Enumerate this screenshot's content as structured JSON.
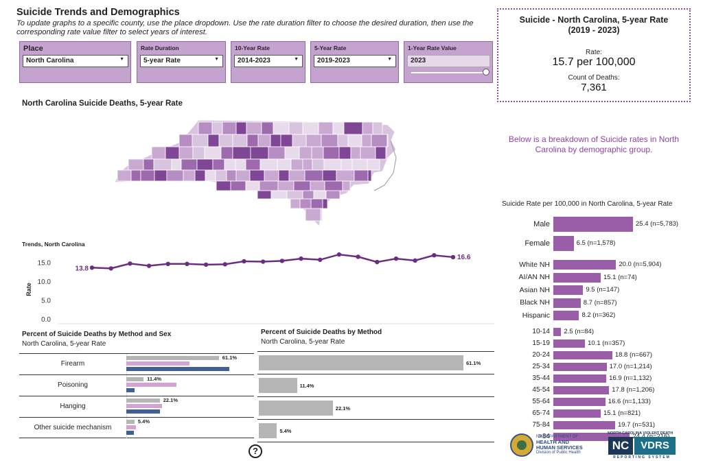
{
  "header": {
    "title": "Suicide Trends and Demographics",
    "subtitle": "To update graphs to a specific county, use the place dropdown.  Use the rate duration filter to choose the desired duration, then use the corresponding rate value filter to select years of interest."
  },
  "filters": {
    "place": {
      "label": "Place",
      "value": "North Carolina"
    },
    "duration": {
      "label": "Rate Duration",
      "value": "5-year Rate"
    },
    "ten_year": {
      "label": "10-Year Rate",
      "value": "2014-2023"
    },
    "five_year": {
      "label": "5-Year Rate",
      "value": "2019-2023"
    },
    "one_year": {
      "label": "1-Year Rate Value",
      "value": "2023",
      "slider_fraction": 1.0
    }
  },
  "summary": {
    "title_line1": "Suicide -  North Carolina,  5-year Rate",
    "title_line2": "(2019 - 2023)",
    "rate_label": "Rate:",
    "rate_value": "15.7  per 100,000",
    "deaths_label": "Count of Deaths:",
    "deaths_value": "7,361"
  },
  "map": {
    "title": "North Carolina Suicide Deaths, 5-year Rate"
  },
  "breakdown_note": "Below is a breakdown of Suicide rates in North Carolina by demographic group.",
  "colors": {
    "accent": "#8e44a4",
    "bar": "#9a5da8",
    "line": "#6b2d82",
    "male": "#3f5f95",
    "female": "#d4a3d6",
    "total": "#b5b5b5"
  },
  "chart_data": [
    {
      "type": "line",
      "title": "Trends, North Carolina",
      "ylabel": "Rate",
      "yticks": [
        "15.0",
        "10.0",
        "5.0",
        "0.0"
      ],
      "ylim": [
        0,
        17.5
      ],
      "values": [
        13.8,
        13.6,
        14.9,
        14.3,
        14.8,
        14.8,
        14.6,
        14.7,
        15.5,
        15.4,
        15.6,
        16.2,
        15.9,
        17.3,
        16.7,
        15.3,
        16.2,
        15.7,
        17.1,
        16.6
      ],
      "start_label": "13.8",
      "end_label": "16.6"
    },
    {
      "type": "bar",
      "title": "Percent of Suicide Deaths by Method and Sex",
      "subtitle": "North Carolina, 5-year Rate",
      "categories": [
        "Firearm",
        "Poisoning",
        "Hanging",
        "Other suicide mechanism"
      ],
      "series": [
        {
          "values": [
            61.1,
            11.4,
            22.1,
            5.4
          ],
          "labels": [
            "61.1%",
            "11.4%",
            "22.1%",
            "5.4%"
          ]
        },
        {
          "values": [
            41.5,
            33.0,
            23.5,
            6.5
          ]
        },
        {
          "values": [
            68.0,
            5.5,
            22.0,
            5.0
          ]
        }
      ]
    },
    {
      "type": "bar",
      "title": "Percent of Suicide Deaths by Method",
      "subtitle": "North Carolina, 5-year Rate",
      "categories": [
        "Firearm",
        "Poisoning",
        "Hanging",
        "Other suicide mechanism"
      ],
      "values": [
        61.1,
        11.4,
        22.1,
        5.4
      ],
      "labels": [
        "61.1%",
        "11.4%",
        "22.1%",
        "5.4%"
      ]
    },
    {
      "type": "bar",
      "title": "Suicide Rate per 100,000 in North Carolina, 5-year Rate",
      "groups": [
        {
          "items": [
            {
              "label": "Male",
              "value": 25.4,
              "text": "25.4 (n=5,783)"
            },
            {
              "label": "Female",
              "value": 6.5,
              "text": "6.5 (n=1,578)"
            }
          ]
        },
        {
          "items": [
            {
              "label": "White NH",
              "value": 20.0,
              "text": "20.0 (n=5,904)"
            },
            {
              "label": "AI/AN NH",
              "value": 15.1,
              "text": "15.1 (n=74)"
            },
            {
              "label": "Asian NH",
              "value": 9.5,
              "text": "9.5 (n=147)"
            },
            {
              "label": "Black NH",
              "value": 8.7,
              "text": "8.7 (n=857)"
            },
            {
              "label": "Hispanic",
              "value": 8.2,
              "text": "8.2 (n=362)"
            }
          ]
        },
        {
          "items": [
            {
              "label": "10-14",
              "value": 2.5,
              "text": "2.5 (n=84)"
            },
            {
              "label": "15-19",
              "value": 10.1,
              "text": "10.1 (n=357)"
            },
            {
              "label": "20-24",
              "value": 18.8,
              "text": "18.8 (n=667)"
            },
            {
              "label": "25-34",
              "value": 17.0,
              "text": "17.0 (n=1,214)"
            },
            {
              "label": "35-44",
              "value": 16.9,
              "text": "16.9 (n=1,132)"
            },
            {
              "label": "45-54",
              "value": 17.8,
              "text": "17.8 (n=1,206)"
            },
            {
              "label": "55-64",
              "value": 16.6,
              "text": "16.6 (n=1,133)"
            },
            {
              "label": "65-74",
              "value": 15.1,
              "text": "15.1 (n=821)"
            },
            {
              "label": "75-84",
              "value": 19.7,
              "text": "19.7 (n=531)"
            },
            {
              "label": ">84",
              "value": 24.4,
              "text": "24.4 (n=216)"
            }
          ]
        }
      ]
    }
  ],
  "logos": {
    "dhhs_line1": "NC DEPARTMENT OF",
    "dhhs_line2": "HEALTH AND",
    "dhhs_line3": "HUMAN SERVICES",
    "dhhs_line4": "Division of Public Health",
    "vdrs_top": "NORTH CAROLINA VIOLENT DEATH",
    "vdrs_nc": "NC",
    "vdrs_name": "VDRS",
    "vdrs_sub": "REPORTING SYSTEM"
  },
  "help_icon": "?"
}
